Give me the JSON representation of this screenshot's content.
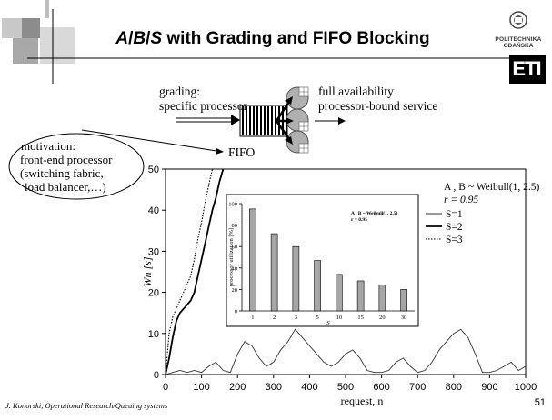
{
  "slide": {
    "title_parts": [
      "A",
      "/",
      "B",
      "/",
      "S",
      " with Grading and FIFO Blocking"
    ],
    "logo": {
      "line1": "POLITECHNIKA",
      "line2": "GDAŃSKA",
      "mark": "ETI"
    },
    "diagram": {
      "left_label_1": "grading:",
      "left_label_2": "specific processor",
      "right_label_1": "full availability",
      "right_label_2": "processor-bound service",
      "queue_label": "FIFO"
    },
    "motivation": {
      "line1": "motivation:",
      "line2": "front-end processor",
      "line3": "(switching fabric,",
      "line4": "load balancer,…)"
    },
    "footer_author": "J. Konorski, Operational Research/Queuing systems",
    "page_number": "51"
  },
  "chart_data": [
    {
      "type": "line",
      "title": "",
      "xlabel": "request, n",
      "ylabel": "Wn [s]",
      "xlim": [
        0,
        1000
      ],
      "ylim": [
        0,
        50
      ],
      "x_ticks": [
        0,
        100,
        200,
        300,
        400,
        500,
        600,
        700,
        800,
        900,
        1000
      ],
      "y_ticks": [
        0,
        10,
        20,
        30,
        40,
        50
      ],
      "annotation": [
        "A , B ~ Weibull(1, 2.5)",
        "r = 0.95"
      ],
      "legend_position": "right",
      "series": [
        {
          "name": "S=1",
          "style": "solid-thin",
          "x": [
            0,
            20,
            40,
            60,
            80,
            100,
            120,
            140,
            160,
            180,
            200,
            220,
            240,
            260,
            280,
            300,
            320,
            340,
            360,
            380,
            400,
            420,
            440,
            460,
            480,
            500,
            520,
            540,
            560,
            580,
            600,
            620,
            640,
            660,
            680,
            700,
            720,
            740,
            760,
            780,
            800,
            820,
            840,
            860,
            880,
            900,
            920,
            940,
            960,
            980,
            1000
          ],
          "y": [
            0,
            0.5,
            1,
            0.5,
            1,
            0.5,
            2,
            3,
            1,
            0.5,
            5,
            8,
            7,
            4,
            2,
            3,
            6,
            8,
            11,
            9,
            7,
            5,
            3,
            2,
            3,
            5,
            6,
            4,
            1,
            0.5,
            0.5,
            1,
            3,
            4,
            2,
            0.5,
            1,
            3,
            6,
            8,
            10,
            11,
            9,
            5,
            0.5,
            0.5,
            1,
            2,
            3,
            1,
            2
          ]
        },
        {
          "name": "S=2",
          "style": "solid-thick",
          "x": [
            0,
            10,
            20,
            30,
            40,
            50,
            60,
            70,
            80,
            90,
            100,
            110,
            120,
            130,
            140,
            150,
            160
          ],
          "y": [
            0,
            4,
            9,
            13,
            15,
            16,
            17,
            18,
            20,
            24,
            28,
            32,
            36,
            40,
            43,
            47,
            50
          ]
        },
        {
          "name": "S=3",
          "style": "dotted",
          "x": [
            0,
            10,
            20,
            30,
            40,
            50,
            60,
            70,
            80,
            90,
            100,
            110,
            120,
            130
          ],
          "y": [
            0,
            10,
            14,
            16,
            18,
            20,
            22,
            24,
            28,
            33,
            37,
            42,
            46,
            50
          ]
        }
      ]
    },
    {
      "type": "bar",
      "title": "",
      "xlabel": "S",
      "ylabel": "processor utilization [%]",
      "ylim": [
        0,
        100
      ],
      "y_ticks": [
        0,
        20,
        40,
        60,
        80,
        100
      ],
      "annotation": [
        "A , B ~ Weibull(1, 2.5)",
        "r = 0.95"
      ],
      "categories": [
        "1",
        "2",
        "3",
        "5",
        "10",
        "15",
        "20",
        "30"
      ],
      "values": [
        95,
        72,
        60,
        47,
        34,
        28,
        24,
        20
      ]
    }
  ]
}
